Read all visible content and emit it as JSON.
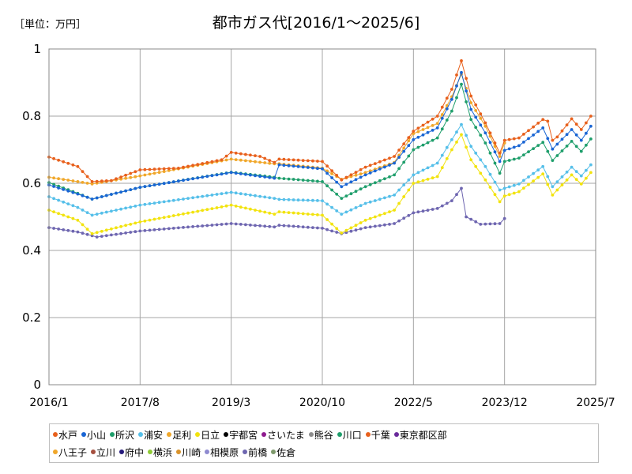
{
  "unit_label": "［単位：万円］",
  "chart_data": {
    "type": "line",
    "title": "都市ガス代[2016/1～2025/6]",
    "xlabel": "",
    "ylabel": "",
    "x_ticks": [
      "2016/1",
      "2017/8",
      "2019/3",
      "2020/10",
      "2022/5",
      "2023/12",
      "2025/7"
    ],
    "y_ticks": [
      "0",
      "0.2",
      "0.4",
      "0.6",
      "0.8",
      "1"
    ],
    "ylim": [
      0,
      1
    ],
    "grid": true,
    "legend_position": "bottom",
    "x_start": "2016/1",
    "series": [
      {
        "name": "水戸",
        "color": "#e8601c",
        "points": [
          [
            "2016/1",
            0.678
          ],
          [
            "2016/7",
            0.65
          ],
          [
            "2016/10",
            0.605
          ],
          [
            "2017/2",
            0.608
          ],
          [
            "2017/8",
            0.64
          ],
          [
            "2018/4",
            0.645
          ],
          [
            "2019/1",
            0.67
          ],
          [
            "2019/3",
            0.692
          ],
          [
            "2019/9",
            0.68
          ],
          [
            "2019/12",
            0.662
          ],
          [
            "2020/1",
            0.672
          ],
          [
            "2020/10",
            0.665
          ],
          [
            "2021/2",
            0.61
          ],
          [
            "2021/7",
            0.648
          ],
          [
            "2022/1",
            0.68
          ],
          [
            "2022/5",
            0.755
          ],
          [
            "2022/10",
            0.8
          ],
          [
            "2023/1",
            0.88
          ],
          [
            "2023/3",
            0.965
          ],
          [
            "2023/5",
            0.86
          ],
          [
            "2023/8",
            0.78
          ],
          [
            "2023/11",
            0.69
          ],
          [
            "2023/12",
            0.728
          ],
          [
            "2024/3",
            0.735
          ],
          [
            "2024/8",
            0.79
          ],
          [
            "2024/9",
            0.785
          ],
          [
            "2024/10",
            0.728
          ],
          [
            "2024/11",
            0.738
          ],
          [
            "2025/2",
            0.792
          ],
          [
            "2025/4",
            0.76
          ],
          [
            "2025/6",
            0.8
          ]
        ]
      },
      {
        "name": "小山",
        "color": "#1965d4",
        "points": [
          [
            "2016/1",
            0.595
          ],
          [
            "2016/7",
            0.568
          ],
          [
            "2016/10",
            0.553
          ],
          [
            "2017/8",
            0.588
          ],
          [
            "2019/3",
            0.632
          ],
          [
            "2019/12",
            0.615
          ],
          [
            "2020/1",
            0.655
          ],
          [
            "2020/10",
            0.643
          ],
          [
            "2021/2",
            0.59
          ],
          [
            "2021/7",
            0.625
          ],
          [
            "2022/1",
            0.66
          ],
          [
            "2022/5",
            0.73
          ],
          [
            "2022/10",
            0.765
          ],
          [
            "2023/1",
            0.85
          ],
          [
            "2023/3",
            0.93
          ],
          [
            "2023/5",
            0.82
          ],
          [
            "2023/8",
            0.75
          ],
          [
            "2023/11",
            0.665
          ],
          [
            "2023/12",
            0.698
          ],
          [
            "2024/3",
            0.712
          ],
          [
            "2024/8",
            0.765
          ],
          [
            "2024/10",
            0.702
          ],
          [
            "2025/2",
            0.76
          ],
          [
            "2025/4",
            0.728
          ],
          [
            "2025/6",
            0.77
          ]
        ]
      },
      {
        "name": "所沢",
        "color": "#1e9e6b",
        "points": [
          [
            "2016/1",
            0.602
          ],
          [
            "2016/7",
            0.57
          ],
          [
            "2016/10",
            0.553
          ],
          [
            "2017/8",
            0.588
          ],
          [
            "2019/3",
            0.633
          ],
          [
            "2019/12",
            0.618
          ],
          [
            "2020/1",
            0.615
          ],
          [
            "2020/10",
            0.605
          ],
          [
            "2021/2",
            0.555
          ],
          [
            "2021/7",
            0.59
          ],
          [
            "2022/1",
            0.625
          ],
          [
            "2022/5",
            0.7
          ],
          [
            "2022/10",
            0.735
          ],
          [
            "2023/1",
            0.815
          ],
          [
            "2023/3",
            0.895
          ],
          [
            "2023/5",
            0.79
          ],
          [
            "2023/8",
            0.72
          ],
          [
            "2023/11",
            0.63
          ],
          [
            "2023/12",
            0.665
          ],
          [
            "2024/3",
            0.675
          ],
          [
            "2024/8",
            0.722
          ],
          [
            "2024/10",
            0.668
          ],
          [
            "2025/2",
            0.725
          ],
          [
            "2025/4",
            0.695
          ],
          [
            "2025/6",
            0.732
          ]
        ]
      },
      {
        "name": "浦安",
        "color": "#55bfe9",
        "points": [
          [
            "2016/1",
            0.56
          ],
          [
            "2016/7",
            0.528
          ],
          [
            "2016/10",
            0.505
          ],
          [
            "2017/8",
            0.535
          ],
          [
            "2019/3",
            0.573
          ],
          [
            "2019/12",
            0.555
          ],
          [
            "2020/1",
            0.552
          ],
          [
            "2020/10",
            0.548
          ],
          [
            "2021/2",
            0.508
          ],
          [
            "2021/7",
            0.54
          ],
          [
            "2022/1",
            0.565
          ],
          [
            "2022/5",
            0.625
          ],
          [
            "2022/10",
            0.66
          ],
          [
            "2023/1",
            0.73
          ],
          [
            "2023/3",
            0.775
          ],
          [
            "2023/5",
            0.71
          ],
          [
            "2023/8",
            0.65
          ],
          [
            "2023/11",
            0.58
          ],
          [
            "2023/12",
            0.585
          ],
          [
            "2024/3",
            0.598
          ],
          [
            "2024/8",
            0.65
          ],
          [
            "2024/10",
            0.59
          ],
          [
            "2025/2",
            0.648
          ],
          [
            "2025/4",
            0.622
          ],
          [
            "2025/6",
            0.655
          ]
        ]
      },
      {
        "name": "足利",
        "color": "#f0a72a",
        "points": [
          [
            "2016/1",
            0.618
          ],
          [
            "2016/7",
            0.605
          ],
          [
            "2016/10",
            0.598
          ],
          [
            "2017/8",
            0.622
          ],
          [
            "2019/3",
            0.672
          ],
          [
            "2019/12",
            0.658
          ],
          [
            "2020/1",
            0.658
          ],
          [
            "2020/10",
            0.645
          ],
          [
            "2021/2",
            0.612
          ],
          [
            "2021/7",
            0.632
          ],
          [
            "2022/1",
            0.662
          ],
          [
            "2022/5",
            0.748
          ],
          [
            "2022/10",
            0.778
          ],
          [
            "2023/1",
            0.858
          ],
          [
            "2023/3",
            0.925
          ],
          [
            "2023/5",
            0.84
          ],
          [
            "2023/8",
            0.77
          ],
          [
            "2023/11",
            0.68
          ],
          [
            "2023/12",
            0.72
          ]
        ]
      },
      {
        "name": "日立",
        "color": "#f2e30e",
        "points": [
          [
            "2016/1",
            0.52
          ],
          [
            "2016/7",
            0.49
          ],
          [
            "2016/10",
            0.45
          ],
          [
            "2017/8",
            0.485
          ],
          [
            "2019/3",
            0.535
          ],
          [
            "2019/12",
            0.508
          ],
          [
            "2020/1",
            0.515
          ],
          [
            "2020/10",
            0.505
          ],
          [
            "2021/2",
            0.452
          ],
          [
            "2021/7",
            0.49
          ],
          [
            "2022/1",
            0.52
          ],
          [
            "2022/5",
            0.6
          ],
          [
            "2022/10",
            0.62
          ],
          [
            "2023/1",
            0.7
          ],
          [
            "2023/3",
            0.745
          ],
          [
            "2023/5",
            0.67
          ],
          [
            "2023/8",
            0.61
          ],
          [
            "2023/11",
            0.545
          ],
          [
            "2023/12",
            0.562
          ],
          [
            "2024/3",
            0.575
          ],
          [
            "2024/8",
            0.628
          ],
          [
            "2024/10",
            0.565
          ],
          [
            "2025/2",
            0.625
          ],
          [
            "2025/4",
            0.598
          ],
          [
            "2025/6",
            0.632
          ]
        ]
      },
      {
        "name": "宇都宮",
        "color": "#000000",
        "points": []
      },
      {
        "name": "さいたま",
        "color": "#8e1a8e",
        "points": []
      },
      {
        "name": "熊谷",
        "color": "#8c8c8c",
        "points": []
      },
      {
        "name": "川口",
        "color": "#1e9e6b",
        "points": []
      },
      {
        "name": "千葉",
        "color": "#e8601c",
        "points": []
      },
      {
        "name": "東京都区部",
        "color": "#6a2b9b",
        "points": []
      },
      {
        "name": "八王子",
        "color": "#f0a72a",
        "points": []
      },
      {
        "name": "立川",
        "color": "#a5503f",
        "points": []
      },
      {
        "name": "府中",
        "color": "#24197a",
        "points": []
      },
      {
        "name": "横浜",
        "color": "#8fcb35",
        "points": []
      },
      {
        "name": "川崎",
        "color": "#d9932b",
        "points": []
      },
      {
        "name": "相模原",
        "color": "#8e8ad0",
        "points": []
      },
      {
        "name": "前橋",
        "color": "#6e66b0",
        "points": [
          [
            "2016/1",
            0.468
          ],
          [
            "2016/7",
            0.455
          ],
          [
            "2016/11",
            0.44
          ],
          [
            "2017/8",
            0.458
          ],
          [
            "2019/3",
            0.48
          ],
          [
            "2019/12",
            0.47
          ],
          [
            "2020/1",
            0.475
          ],
          [
            "2020/10",
            0.466
          ],
          [
            "2021/2",
            0.45
          ],
          [
            "2021/7",
            0.468
          ],
          [
            "2022/1",
            0.48
          ],
          [
            "2022/5",
            0.512
          ],
          [
            "2022/10",
            0.525
          ],
          [
            "2023/1",
            0.548
          ],
          [
            "2023/3",
            0.585
          ],
          [
            "2023/4",
            0.5
          ],
          [
            "2023/7",
            0.478
          ],
          [
            "2023/11",
            0.48
          ],
          [
            "2023/12",
            0.495
          ]
        ]
      },
      {
        "name": "佐倉",
        "color": "#7f9a6c",
        "points": []
      }
    ]
  }
}
